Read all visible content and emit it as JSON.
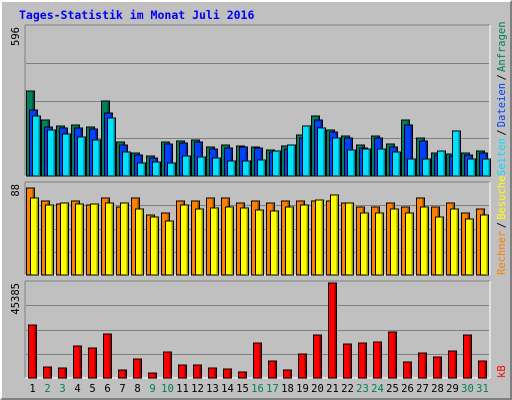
{
  "chart_data": {
    "type": "bar",
    "title": "Tages-Statistik im Monat Juli 2016",
    "categories": [
      "1",
      "2",
      "3",
      "4",
      "5",
      "6",
      "7",
      "8",
      "9",
      "10",
      "11",
      "12",
      "13",
      "14",
      "15",
      "16",
      "17",
      "18",
      "19",
      "20",
      "21",
      "22",
      "23",
      "24",
      "25",
      "26",
      "27",
      "28",
      "29",
      "30",
      "31"
    ],
    "weekend_days": [
      "2",
      "3",
      "9",
      "10",
      "16",
      "17",
      "23",
      "24",
      "30",
      "31"
    ],
    "colors": {
      "title": "#0000ff",
      "weekday_label": "#000000",
      "weekend_label": "#00805c",
      "anfragen": "#00805c",
      "dateien": "#0040ff",
      "seiten": "#00e0ff",
      "rechner": "#ff8000",
      "besuche": "#ffff00",
      "kb": "#ff0000"
    },
    "panels": [
      {
        "id": "requests",
        "scale_label": "596",
        "ylim": [
          0,
          596
        ],
        "series": [
          {
            "name": "Anfragen",
            "color": "#00805c",
            "values": [
              340,
              222,
              201,
              205,
              195,
              300,
              134,
              93,
              81,
              137,
              141,
              143,
              115,
              122,
              121,
              117,
              103,
              118,
              165,
              241,
              185,
              160,
              123,
              160,
              126,
              222,
              150,
              93,
              86,
              91,
              98
            ]
          },
          {
            "name": "Dateien",
            "color": "#0040ff",
            "values": [
              263,
              197,
              190,
              193,
              188,
              251,
              123,
              85,
              72,
              127,
              133,
              136,
              108,
              113,
              115,
              110,
              97,
              108,
              151,
              225,
              174,
              151,
              113,
              152,
              114,
              203,
              139,
              85,
              80,
              85,
              91
            ]
          },
          {
            "name": "Seiten",
            "color": "#00e0ff",
            "values": [
              240,
              183,
              167,
              157,
              145,
              233,
              95,
              53,
              57,
              50,
              80,
              75,
              70,
              58,
              60,
              64,
              98,
              125,
              200,
              190,
              153,
              105,
              108,
              108,
              95,
              68,
              67,
              100,
              178,
              66,
              67
            ]
          }
        ]
      },
      {
        "id": "visits",
        "scale_label": "88",
        "ylim": [
          0,
          88
        ],
        "series": [
          {
            "name": "Rechner",
            "color": "#ff8000",
            "values": [
              84,
              72,
              69,
              72,
              68,
              74,
              66,
              74,
              58,
              60,
              72,
              72,
              74,
              74,
              70,
              72,
              70,
              72,
              72,
              72,
              72,
              70,
              66,
              66,
              70,
              66,
              74,
              66,
              70,
              60,
              64
            ]
          },
          {
            "name": "Besuche",
            "color": "#ffff00",
            "values": [
              74,
              68,
              70,
              69,
              69,
              70,
              70,
              64,
              56,
              52,
              68,
              64,
              65,
              66,
              65,
              63,
              62,
              66,
              68,
              73,
              77,
              70,
              60,
              60,
              64,
              60,
              66,
              56,
              64,
              54,
              58
            ]
          }
        ]
      },
      {
        "id": "traffic",
        "scale_label": "45385",
        "ylim": [
          0,
          45385
        ],
        "series": [
          {
            "name": "kB",
            "color": "#ff0000",
            "values": [
              25300,
              5100,
              5000,
              15300,
              14200,
              20900,
              3900,
              9000,
              2200,
              12200,
              6400,
              6000,
              5000,
              4300,
              2800,
              16800,
              8200,
              3600,
              11500,
              20600,
              45385,
              16300,
              16700,
              17000,
              22200,
              7800,
              11900,
              10000,
              13000,
              20600,
              8300
            ]
          }
        ]
      }
    ],
    "side_labels": [
      {
        "text": "Anfragen",
        "color": "#00805c"
      },
      {
        "text": "/",
        "color": "#000000"
      },
      {
        "text": "Dateien",
        "color": "#0040ff"
      },
      {
        "text": "/",
        "color": "#000000"
      },
      {
        "text": "Seiten",
        "color": "#00e0ff"
      },
      {
        "text": "Besuche",
        "color": "#ffff00"
      },
      {
        "text": "/",
        "color": "#000000"
      },
      {
        "text": "Rechner",
        "color": "#ff8000"
      },
      {
        "text": "kB",
        "color": "#ff0000"
      }
    ],
    "grid": true,
    "legend": "right-side-vertical"
  }
}
